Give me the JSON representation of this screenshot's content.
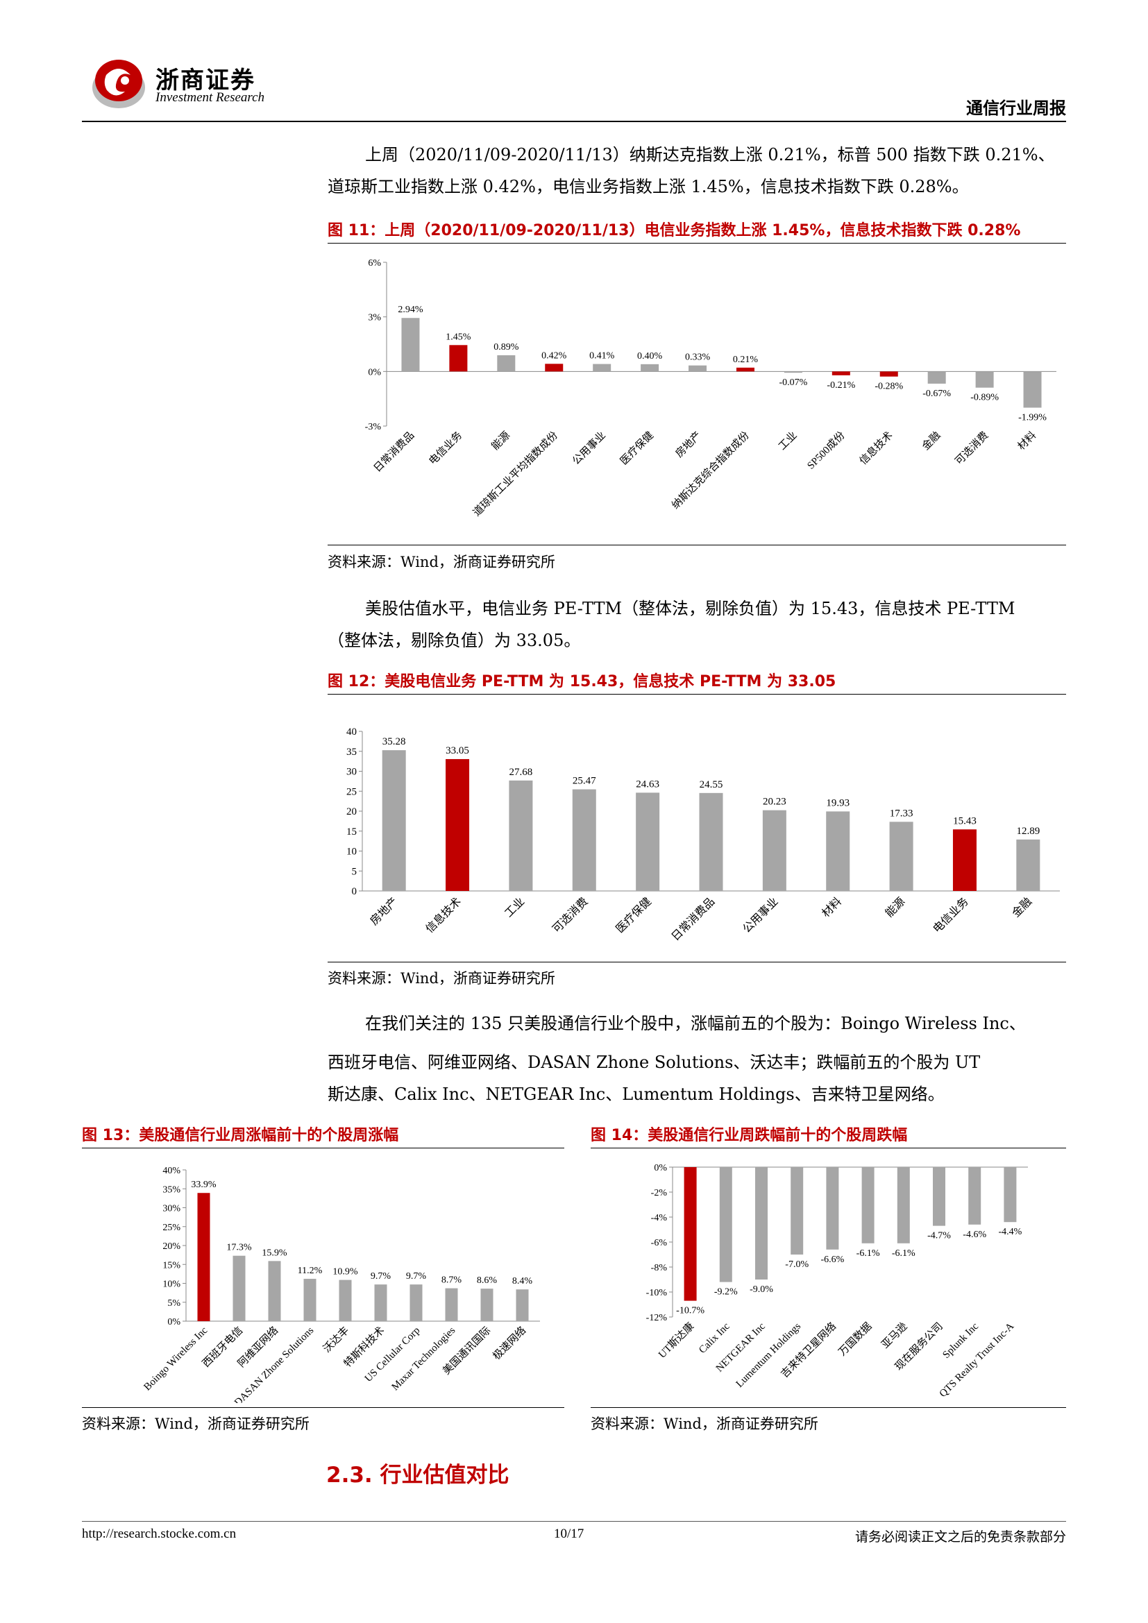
{
  "header": {
    "company_cn": "浙商证券",
    "company_en": "Investment Research",
    "report_type": "通信行业周报"
  },
  "paragraphs": {
    "p1_line1": "上周（2020/11/09-2020/11/13）纳斯达克指数上涨 0.21%，标普 500 指数下跌 0.21%、",
    "p1_line2": "道琼斯工业指数上涨 0.42%，电信业务指数上涨 1.45%，信息技术指数下跌 0.28%。",
    "p2_line1": "美股估值水平，电信业务 PE-TTM（整体法，剔除负值）为 15.43，信息技术 PE-TTM",
    "p2_line2": "（整体法，剔除负值）为 33.05。",
    "p3_line1": "在我们关注的 135 只美股通信行业个股中，涨幅前五的个股为：Boingo Wireless Inc、",
    "p3_line2": "西班牙电信、阿维亚网络、DASAN Zhone Solutions、沃达丰；跌幅前五的个股为 UT",
    "p3_line3": "斯达康、Calix Inc、NETGEAR Inc、Lumentum Holdings、吉来特卫星网络。"
  },
  "figures": {
    "fig11_title": "图 11：上周（2020/11/09-2020/11/13）电信业务指数上涨 1.45%，信息技术指数下跌 0.28%",
    "fig12_title": "图 12：美股电信业务 PE-TTM 为 15.43，信息技术 PE-TTM 为 33.05",
    "fig13_title": "图 13：美股通信行业周涨幅前十的个股周涨幅",
    "fig14_title": "图 14：美股通信行业周跌幅前十的个股周跌幅",
    "source": "资料来源：Wind，浙商证券研究所"
  },
  "section": {
    "title": "2.3. 行业估值对比"
  },
  "footer": {
    "url": "http://research.stocke.com.cn",
    "page": "10/17",
    "disclaimer": "请务必阅读正文之后的免责条款部分"
  },
  "colors": {
    "red": "#c00000",
    "gray": "#a6a6a6",
    "title_red": "#c00000"
  },
  "chart_data": [
    {
      "id": "fig11",
      "type": "bar",
      "categories": [
        "日常消费品",
        "电信业务",
        "能源",
        "道琼斯工业平均指数成份",
        "公用事业",
        "医疗保健",
        "房地产",
        "纳斯达克综合指数成份",
        "工业",
        "SP500成份",
        "信息技术",
        "金融",
        "可选消费",
        "材料"
      ],
      "values": [
        2.94,
        1.45,
        0.89,
        0.42,
        0.41,
        0.4,
        0.33,
        0.21,
        -0.07,
        -0.21,
        -0.28,
        -0.67,
        -0.89,
        -1.99
      ],
      "labels": [
        "2.94%",
        "1.45%",
        "0.89%",
        "0.42%",
        "0.41%",
        "0.40%",
        "0.33%",
        "0.21%",
        "-0.07%",
        "-0.21%",
        "-0.28%",
        "-0.67%",
        "-0.89%",
        "-1.99%"
      ],
      "highlight": [
        false,
        true,
        false,
        true,
        false,
        false,
        false,
        true,
        false,
        true,
        true,
        false,
        false,
        false
      ],
      "yticks": [
        "6%",
        "3%",
        "0%",
        "-3%"
      ],
      "ylim": [
        -3,
        6
      ]
    },
    {
      "id": "fig12",
      "type": "bar",
      "categories": [
        "房地产",
        "信息技术",
        "工业",
        "可选消费",
        "医疗保健",
        "日常消费品",
        "公用事业",
        "材料",
        "能源",
        "电信业务",
        "金融"
      ],
      "values": [
        35.28,
        33.05,
        27.68,
        25.47,
        24.63,
        24.55,
        20.23,
        19.93,
        17.33,
        15.43,
        12.89
      ],
      "labels": [
        "35.28",
        "33.05",
        "27.68",
        "25.47",
        "24.63",
        "24.55",
        "20.23",
        "19.93",
        "17.33",
        "15.43",
        "12.89"
      ],
      "highlight": [
        false,
        true,
        false,
        false,
        false,
        false,
        false,
        false,
        false,
        true,
        false
      ],
      "yticks": [
        "40",
        "35",
        "30",
        "25",
        "20",
        "15",
        "10",
        "5",
        "0"
      ],
      "ylim": [
        0,
        40
      ]
    },
    {
      "id": "fig13",
      "type": "bar",
      "categories": [
        "Boingo Wireless Inc",
        "西班牙电信",
        "阿维亚网络",
        "DASAN Zhone Solutions",
        "沃达丰",
        "特斯科技术",
        "US Cellular Corp",
        "Maxar Technologies",
        "美国通讯国际",
        "极速网络"
      ],
      "values": [
        33.9,
        17.3,
        15.9,
        11.2,
        10.9,
        9.7,
        9.7,
        8.7,
        8.6,
        8.4
      ],
      "labels": [
        "33.9%",
        "17.3%",
        "15.9%",
        "11.2%",
        "10.9%",
        "9.7%",
        "9.7%",
        "8.7%",
        "8.6%",
        "8.4%"
      ],
      "highlight": [
        true,
        false,
        false,
        false,
        false,
        false,
        false,
        false,
        false,
        false
      ],
      "yticks": [
        "40%",
        "35%",
        "30%",
        "25%",
        "20%",
        "15%",
        "10%",
        "5%",
        "0%"
      ],
      "ylim": [
        0,
        40
      ]
    },
    {
      "id": "fig14",
      "type": "bar",
      "categories": [
        "UT斯达康",
        "Calix Inc",
        "NETGEAR Inc",
        "Lumentum Holdings",
        "吉来特卫星网络",
        "万国数据",
        "亚马逊",
        "现在服务公司",
        "Splunk Inc",
        "QTS Realty Trust Inc-A"
      ],
      "values": [
        -10.7,
        -9.2,
        -9.0,
        -7.0,
        -6.6,
        -6.1,
        -6.1,
        -4.7,
        -4.6,
        -4.4
      ],
      "labels": [
        "-10.7%",
        "-9.2%",
        "-9.0%",
        "-7.0%",
        "-6.6%",
        "-6.1%",
        "-6.1%",
        "-4.7%",
        "-4.6%",
        "-4.4%"
      ],
      "highlight": [
        true,
        false,
        false,
        false,
        false,
        false,
        false,
        false,
        false,
        false
      ],
      "yticks": [
        "0%",
        "-2%",
        "-4%",
        "-6%",
        "-8%",
        "-10%",
        "-12%"
      ],
      "ylim": [
        -12,
        0
      ]
    }
  ]
}
